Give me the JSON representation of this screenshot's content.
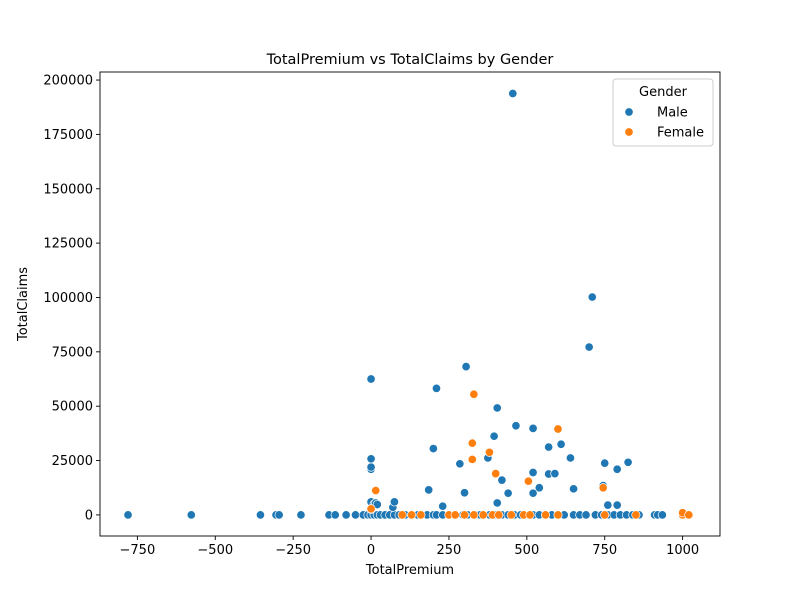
{
  "chart_data": {
    "type": "scatter",
    "title": "TotalPremium vs TotalClaims by Gender",
    "xlabel": "TotalPremium",
    "ylabel": "TotalClaims",
    "xlim": [
      -870,
      1120
    ],
    "ylim": [
      -9700,
      203700
    ],
    "xticks": [
      -750,
      -500,
      -250,
      0,
      250,
      500,
      750,
      1000
    ],
    "yticks": [
      0,
      25000,
      50000,
      75000,
      100000,
      125000,
      150000,
      175000,
      200000
    ],
    "grid": false,
    "legend": {
      "title": "Gender",
      "placement": "top-right",
      "entries": [
        "Male",
        "Female"
      ]
    },
    "series": [
      {
        "name": "Male",
        "color": "#1f77b4",
        "points": [
          [
            -780,
            0
          ],
          [
            -577,
            0
          ],
          [
            -355,
            0
          ],
          [
            -305,
            0
          ],
          [
            -295,
            0
          ],
          [
            -225,
            0
          ],
          [
            -135,
            0
          ],
          [
            -115,
            0
          ],
          [
            -80,
            0
          ],
          [
            -50,
            0
          ],
          [
            -25,
            0
          ],
          [
            -10,
            0
          ],
          [
            0,
            0
          ],
          [
            10,
            0
          ],
          [
            20,
            0
          ],
          [
            30,
            0
          ],
          [
            45,
            0
          ],
          [
            60,
            0
          ],
          [
            75,
            0
          ],
          [
            90,
            0
          ],
          [
            110,
            0
          ],
          [
            130,
            0
          ],
          [
            150,
            0
          ],
          [
            180,
            0
          ],
          [
            200,
            0
          ],
          [
            210,
            0
          ],
          [
            230,
            0
          ],
          [
            250,
            0
          ],
          [
            270,
            0
          ],
          [
            295,
            0
          ],
          [
            310,
            0
          ],
          [
            335,
            0
          ],
          [
            350,
            0
          ],
          [
            380,
            0
          ],
          [
            400,
            0
          ],
          [
            420,
            0
          ],
          [
            440,
            0
          ],
          [
            460,
            0
          ],
          [
            480,
            0
          ],
          [
            520,
            0
          ],
          [
            540,
            0
          ],
          [
            560,
            0
          ],
          [
            580,
            0
          ],
          [
            600,
            0
          ],
          [
            620,
            0
          ],
          [
            650,
            0
          ],
          [
            670,
            0
          ],
          [
            690,
            0
          ],
          [
            720,
            0
          ],
          [
            740,
            0
          ],
          [
            760,
            0
          ],
          [
            780,
            0
          ],
          [
            800,
            0
          ],
          [
            820,
            0
          ],
          [
            840,
            0
          ],
          [
            860,
            0
          ],
          [
            910,
            0
          ],
          [
            920,
            0
          ],
          [
            935,
            0
          ],
          [
            1000,
            0
          ],
          [
            0,
            2500
          ],
          [
            0,
            6000
          ],
          [
            10,
            5000
          ],
          [
            15,
            5500
          ],
          [
            20,
            4800
          ],
          [
            70,
            3500
          ],
          [
            75,
            6000
          ],
          [
            185,
            11500
          ],
          [
            230,
            4000
          ],
          [
            300,
            10200
          ],
          [
            405,
            5500
          ],
          [
            420,
            16000
          ],
          [
            440,
            10000
          ],
          [
            520,
            10000
          ],
          [
            540,
            12500
          ],
          [
            650,
            12000
          ],
          [
            745,
            13500
          ],
          [
            760,
            4500
          ],
          [
            790,
            4500
          ],
          [
            0,
            21000
          ],
          [
            0,
            22000
          ],
          [
            0,
            25800
          ],
          [
            0,
            62500
          ],
          [
            200,
            30500
          ],
          [
            210,
            58200
          ],
          [
            285,
            23500
          ],
          [
            305,
            68200
          ],
          [
            375,
            26200
          ],
          [
            395,
            36200
          ],
          [
            405,
            49200
          ],
          [
            465,
            41000
          ],
          [
            520,
            39800
          ],
          [
            520,
            19500
          ],
          [
            570,
            31200
          ],
          [
            570,
            18800
          ],
          [
            590,
            19000
          ],
          [
            610,
            32500
          ],
          [
            640,
            26200
          ],
          [
            700,
            77200
          ],
          [
            710,
            100200
          ],
          [
            750,
            23800
          ],
          [
            790,
            21000
          ],
          [
            825,
            24200
          ],
          [
            455,
            193800
          ]
        ]
      },
      {
        "name": "Female",
        "color": "#ff7f0e",
        "points": [
          [
            0,
            2800
          ],
          [
            15,
            11200
          ],
          [
            100,
            0
          ],
          [
            130,
            0
          ],
          [
            160,
            0
          ],
          [
            250,
            0
          ],
          [
            270,
            0
          ],
          [
            300,
            0
          ],
          [
            330,
            0
          ],
          [
            360,
            0
          ],
          [
            390,
            0
          ],
          [
            410,
            0
          ],
          [
            450,
            0
          ],
          [
            490,
            0
          ],
          [
            510,
            0
          ],
          [
            560,
            0
          ],
          [
            600,
            0
          ],
          [
            750,
            0
          ],
          [
            850,
            0
          ],
          [
            1000,
            0
          ],
          [
            1000,
            1000
          ],
          [
            1020,
            0
          ],
          [
            325,
            25500
          ],
          [
            325,
            33000
          ],
          [
            330,
            55500
          ],
          [
            380,
            28800
          ],
          [
            400,
            19000
          ],
          [
            505,
            15500
          ],
          [
            600,
            39500
          ],
          [
            745,
            12500
          ]
        ]
      }
    ]
  }
}
